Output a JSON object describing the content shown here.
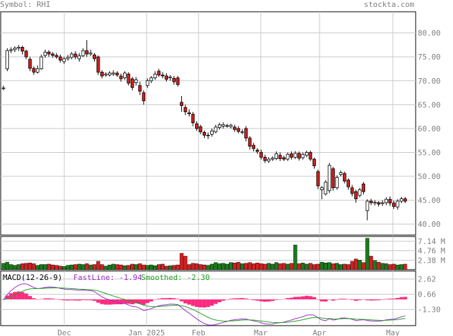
{
  "header": {
    "symbol_label": "Symbol: RHI",
    "watermark": "stockta.com"
  },
  "colors": {
    "up_candle": "#ffffff",
    "down_candle": "#d42020",
    "candle_outline": "#000000",
    "vol_up": "#1a7a1a",
    "vol_down": "#d42020",
    "macd_hist": "#ff2a7f",
    "fastline": "#9a30c8",
    "smoothed": "#21a021",
    "grid": "#c8c8c8",
    "axis_text": "#808080"
  },
  "chart_data": [
    {
      "type": "candlestick",
      "title": "",
      "y_ticks": [
        "80.00",
        "75.00",
        "70.00",
        "65.00",
        "60.00",
        "55.00",
        "50.00",
        "45.00",
        "40.00"
      ],
      "x_ticks": [
        "Dec",
        "Jan 2025",
        "Feb",
        "Mar",
        "Apr",
        "May"
      ],
      "ylim": [
        38,
        84
      ],
      "grid": true,
      "candles": [
        [
          68.5,
          68.5,
          68.0,
          69.0
        ],
        [
          72.5,
          76.3,
          72.0,
          76.8
        ],
        [
          76.3,
          76.5,
          75.8,
          77.0
        ],
        [
          76.5,
          76.8,
          76.0,
          77.2
        ],
        [
          76.8,
          77.0,
          76.2,
          77.5
        ],
        [
          77.0,
          76.2,
          75.5,
          77.3
        ],
        [
          76.2,
          75.0,
          74.5,
          76.5
        ],
        [
          74.5,
          72.6,
          72.0,
          75.0
        ],
        [
          72.6,
          71.8,
          71.2,
          73.0
        ],
        [
          71.8,
          72.5,
          71.5,
          73.2
        ],
        [
          72.5,
          75.0,
          72.3,
          75.5
        ],
        [
          75.3,
          76.0,
          74.8,
          76.5
        ],
        [
          76.0,
          75.6,
          75.0,
          76.4
        ],
        [
          75.6,
          75.3,
          74.8,
          76.0
        ],
        [
          75.3,
          75.0,
          74.6,
          75.8
        ],
        [
          75.0,
          74.3,
          73.8,
          75.5
        ],
        [
          74.0,
          74.6,
          73.5,
          75.0
        ],
        [
          74.6,
          74.9,
          74.2,
          75.4
        ],
        [
          74.9,
          75.6,
          74.5,
          76.0
        ],
        [
          75.6,
          75.0,
          74.5,
          76.2
        ],
        [
          74.6,
          75.2,
          74.0,
          75.8
        ],
        [
          75.2,
          76.3,
          75.0,
          76.8
        ],
        [
          76.3,
          75.6,
          75.0,
          78.5
        ],
        [
          75.6,
          75.8,
          75.2,
          76.5
        ],
        [
          75.4,
          74.6,
          74.0,
          75.8
        ],
        [
          75.0,
          71.8,
          71.2,
          75.3
        ],
        [
          71.8,
          71.0,
          70.5,
          72.2
        ],
        [
          71.2,
          71.4,
          70.8,
          71.8
        ],
        [
          71.2,
          71.6,
          70.9,
          72.0
        ],
        [
          71.4,
          71.6,
          71.0,
          72.2
        ],
        [
          71.6,
          71.2,
          70.8,
          72.0
        ],
        [
          71.0,
          70.4,
          69.8,
          71.5
        ],
        [
          70.6,
          71.6,
          70.2,
          72.0
        ],
        [
          71.4,
          69.5,
          69.0,
          71.8
        ],
        [
          70.4,
          68.6,
          68.0,
          70.8
        ],
        [
          69.6,
          70.2,
          69.0,
          70.8
        ],
        [
          69.0,
          67.8,
          67.0,
          69.8
        ],
        [
          67.5,
          65.8,
          65.0,
          68.0
        ],
        [
          69.0,
          70.0,
          68.5,
          70.5
        ],
        [
          70.0,
          70.6,
          69.5,
          71.0
        ],
        [
          70.6,
          71.4,
          70.2,
          72.0
        ],
        [
          72.0,
          71.2,
          70.8,
          72.5
        ],
        [
          71.2,
          71.0,
          70.5,
          71.8
        ],
        [
          71.0,
          70.3,
          69.8,
          71.6
        ],
        [
          70.6,
          70.8,
          70.0,
          71.2
        ],
        [
          70.5,
          69.8,
          69.2,
          71.0
        ],
        [
          70.6,
          69.2,
          68.8,
          71.0
        ],
        [
          65.5,
          64.8,
          63.5,
          66.8
        ],
        [
          64.4,
          63.5,
          62.8,
          65.0
        ],
        [
          63.3,
          63.1,
          62.5,
          64.0
        ],
        [
          63.0,
          61.2,
          60.5,
          63.5
        ],
        [
          61.0,
          60.0,
          59.5,
          61.5
        ],
        [
          60.4,
          59.3,
          58.8,
          60.8
        ],
        [
          59.2,
          58.6,
          58.0,
          59.6
        ],
        [
          58.6,
          58.6,
          57.8,
          59.2
        ],
        [
          58.8,
          59.5,
          58.3,
          60.0
        ],
        [
          59.3,
          60.3,
          59.0,
          60.8
        ],
        [
          60.2,
          60.8,
          59.8,
          61.2
        ],
        [
          60.5,
          60.8,
          60.0,
          61.3
        ],
        [
          60.6,
          60.6,
          60.2,
          61.0
        ],
        [
          60.4,
          60.7,
          60.0,
          61.0
        ],
        [
          60.3,
          59.8,
          59.3,
          60.8
        ],
        [
          60.0,
          59.4,
          59.0,
          60.5
        ],
        [
          59.3,
          59.3,
          58.8,
          59.8
        ],
        [
          60.0,
          58.0,
          57.3,
          60.5
        ],
        [
          58.0,
          56.3,
          55.6,
          58.4
        ],
        [
          56.5,
          55.8,
          55.2,
          57.0
        ],
        [
          55.5,
          55.2,
          54.7,
          55.9
        ],
        [
          55.0,
          54.0,
          53.5,
          55.6
        ],
        [
          54.0,
          53.3,
          52.8,
          54.5
        ],
        [
          53.2,
          53.6,
          52.8,
          54.0
        ],
        [
          53.6,
          53.8,
          53.2,
          54.2
        ],
        [
          53.7,
          54.7,
          53.4,
          55.2
        ],
        [
          54.4,
          53.7,
          53.2,
          55.0
        ],
        [
          53.9,
          53.6,
          53.2,
          54.3
        ],
        [
          53.6,
          54.6,
          53.2,
          55.0
        ],
        [
          54.7,
          54.0,
          53.5,
          55.2
        ],
        [
          54.0,
          54.8,
          53.6,
          55.3
        ],
        [
          54.8,
          53.8,
          53.3,
          55.2
        ],
        [
          53.9,
          54.6,
          53.5,
          55.0
        ],
        [
          54.4,
          55.0,
          54.0,
          55.4
        ],
        [
          55.0,
          53.6,
          53.2,
          55.4
        ],
        [
          53.6,
          52.2,
          51.6,
          53.9
        ],
        [
          51.0,
          48.0,
          47.3,
          51.4
        ],
        [
          47.2,
          47.6,
          45.2,
          48.0
        ],
        [
          46.3,
          48.8,
          46.0,
          49.2
        ],
        [
          47.0,
          52.3,
          46.5,
          52.8
        ],
        [
          51.6,
          47.6,
          47.0,
          52.0
        ],
        [
          47.6,
          49.8,
          47.2,
          50.2
        ],
        [
          50.4,
          50.8,
          50.0,
          51.2
        ],
        [
          50.6,
          49.0,
          48.5,
          51.0
        ],
        [
          49.2,
          47.8,
          47.2,
          49.6
        ],
        [
          47.6,
          46.4,
          45.8,
          48.2
        ],
        [
          46.8,
          45.3,
          44.5,
          47.2
        ],
        [
          46.0,
          47.2,
          45.6,
          47.6
        ],
        [
          48.4,
          46.8,
          46.2,
          48.8
        ],
        [
          42.8,
          44.8,
          40.8,
          45.2
        ],
        [
          44.8,
          44.5,
          44.0,
          45.3
        ],
        [
          44.4,
          44.6,
          43.9,
          45.0
        ],
        [
          44.5,
          44.2,
          43.7,
          44.8
        ],
        [
          44.3,
          44.5,
          43.8,
          45.0
        ],
        [
          44.5,
          45.2,
          44.0,
          45.6
        ],
        [
          45.2,
          44.4,
          43.8,
          45.8
        ],
        [
          44.4,
          43.7,
          43.2,
          44.9
        ],
        [
          43.6,
          44.8,
          43.0,
          45.2
        ],
        [
          44.8,
          45.3,
          44.4,
          45.7
        ],
        [
          45.3,
          44.8,
          44.4,
          45.7
        ]
      ]
    },
    {
      "type": "bar",
      "title": "",
      "y_ticks": [
        "7.14 M",
        "4.76 M",
        "2.38 M"
      ],
      "ylim_millions": [
        0,
        8.0
      ],
      "values_millions": [
        1.6,
        1.9,
        1.3,
        1.1,
        1.3,
        1.5,
        1.6,
        1.7,
        1.5,
        1.1,
        1.3,
        1.3,
        1.4,
        1.2,
        1.1,
        0.9,
        0.8,
        1.1,
        1.2,
        1.3,
        1.4,
        1.3,
        1.5,
        1.2,
        1.3,
        2.1,
        1.3,
        0.9,
        1.2,
        1.4,
        1.3,
        1.2,
        1.0,
        1.1,
        1.4,
        1.3,
        1.5,
        1.2,
        1.1,
        1.2,
        1.0,
        1.3,
        1.4,
        0.9,
        1.0,
        1.1,
        1.2,
        4.1,
        3.4,
        1.3,
        1.6,
        1.5,
        1.3,
        1.2,
        1.1,
        1.4,
        1.8,
        1.5,
        1.6,
        1.4,
        1.8,
        1.7,
        1.9,
        1.5,
        1.6,
        1.8,
        1.5,
        1.7,
        1.5,
        1.4,
        1.6,
        1.4,
        1.8,
        1.5,
        1.6,
        1.4,
        1.6,
        6.2,
        1.5,
        1.7,
        1.4,
        1.6,
        1.3,
        1.4,
        1.9,
        1.7,
        1.8,
        1.5,
        1.6,
        1.3,
        1.4,
        1.3,
        2.1,
        2.7,
        2.4,
        1.8,
        7.9,
        3.4,
        2.3,
        1.9,
        1.6,
        1.5,
        1.3,
        1.4,
        1.2,
        1.3,
        1.4
      ]
    },
    {
      "type": "line",
      "title": "MACD(12-26-9)",
      "fastline_label": "FastLine: -1.94",
      "smoothed_label": "Smoothed: -2.30",
      "y_ticks": [
        "2.62",
        "0.66",
        "-1.30"
      ],
      "ylim": [
        -3.2,
        3.3
      ]
    }
  ]
}
